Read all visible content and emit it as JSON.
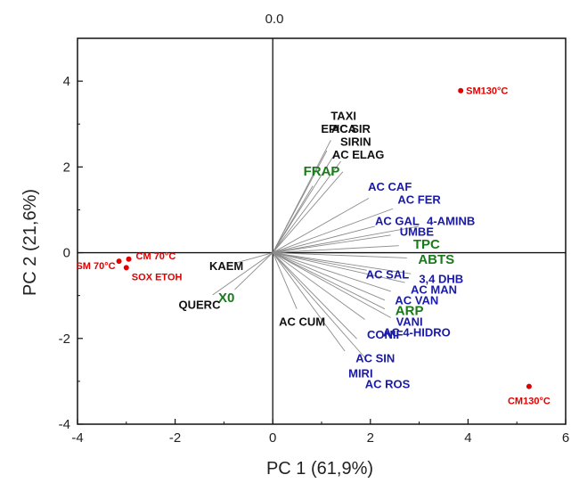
{
  "chart_data": {
    "type": "scatter",
    "top_note": "0.0",
    "xlabel": "PC 1 (61,9%)",
    "ylabel": "PC 2 (21,6%)",
    "xlim": [
      -4,
      6
    ],
    "ylim": [
      -4,
      5
    ],
    "xticks": [
      -4,
      -2,
      0,
      2,
      4,
      6
    ],
    "yticks": [
      -4,
      -2,
      0,
      2,
      4
    ],
    "xtick_labels": [
      "-4",
      "-2",
      "0",
      "2",
      "4",
      "6"
    ],
    "ytick_labels": [
      "-4",
      "-2",
      "0",
      "2",
      "4"
    ],
    "colors": {
      "samples": "#e00000",
      "variables_blue": "#1a1aa8",
      "variables_green": "#1a7a1a",
      "variables_black": "#111111",
      "loading_lines": "#8c8c8c"
    },
    "samples": [
      {
        "name": "SM130°C",
        "x": 3.85,
        "y": 3.78
      },
      {
        "name": "CM130°C",
        "x": 5.25,
        "y": -3.12
      },
      {
        "name": "CM 70°C",
        "x": -2.95,
        "y": -0.15
      },
      {
        "name": "SM 70°C",
        "x": -3.15,
        "y": -0.2
      },
      {
        "name": "SOX ETOH",
        "x": -3.0,
        "y": -0.35
      }
    ],
    "variables": [
      {
        "name": "TAXI",
        "x": 1.45,
        "y": 3.2,
        "group": "black"
      },
      {
        "name": "EPICA",
        "x": 1.35,
        "y": 2.9,
        "group": "black"
      },
      {
        "name": "AC SIR",
        "x": 1.6,
        "y": 2.9,
        "group": "black"
      },
      {
        "name": "SIRIN",
        "x": 1.7,
        "y": 2.6,
        "group": "black"
      },
      {
        "name": "AC ELAG",
        "x": 1.75,
        "y": 2.3,
        "group": "black"
      },
      {
        "name": "FRAP",
        "x": 1.0,
        "y": 1.9,
        "group": "green"
      },
      {
        "name": "AC CAF",
        "x": 2.4,
        "y": 1.55,
        "group": "blue"
      },
      {
        "name": "AC FER",
        "x": 3.0,
        "y": 1.25,
        "group": "blue"
      },
      {
        "name": "AC GAL",
        "x": 2.55,
        "y": 0.75,
        "group": "blue"
      },
      {
        "name": "UMBE",
        "x": 2.95,
        "y": 0.5,
        "group": "blue"
      },
      {
        "name": "4-AMINB",
        "x": 3.65,
        "y": 0.75,
        "group": "blue"
      },
      {
        "name": "TPC",
        "x": 3.15,
        "y": 0.2,
        "group": "green"
      },
      {
        "name": "ABTS",
        "x": 3.35,
        "y": -0.15,
        "group": "green"
      },
      {
        "name": "AC SAL",
        "x": 2.35,
        "y": -0.5,
        "group": "blue"
      },
      {
        "name": "3,4 DHB",
        "x": 3.45,
        "y": -0.6,
        "group": "blue"
      },
      {
        "name": "AC MAN",
        "x": 3.3,
        "y": -0.85,
        "group": "blue"
      },
      {
        "name": "AC VAN",
        "x": 2.95,
        "y": -1.1,
        "group": "blue"
      },
      {
        "name": "ARP",
        "x": 2.8,
        "y": -1.35,
        "group": "green"
      },
      {
        "name": "VANI",
        "x": 2.8,
        "y": -1.6,
        "group": "blue"
      },
      {
        "name": "AC 4-HIDRO",
        "x": 2.95,
        "y": -1.85,
        "group": "blue"
      },
      {
        "name": "CONIF",
        "x": 2.3,
        "y": -1.9,
        "group": "blue"
      },
      {
        "name": "AC SIN",
        "x": 2.1,
        "y": -2.45,
        "group": "blue"
      },
      {
        "name": "MIRI",
        "x": 1.8,
        "y": -2.8,
        "group": "blue"
      },
      {
        "name": "AC ROS",
        "x": 2.35,
        "y": -3.05,
        "group": "blue"
      },
      {
        "name": "AC CUM",
        "x": 0.6,
        "y": -1.6,
        "group": "black"
      },
      {
        "name": "KAEM",
        "x": -0.95,
        "y": -0.3,
        "group": "black"
      },
      {
        "name": "X0",
        "x": -0.95,
        "y": -1.05,
        "group": "green"
      },
      {
        "name": "QUERC",
        "x": -1.5,
        "y": -1.2,
        "group": "black"
      }
    ]
  }
}
